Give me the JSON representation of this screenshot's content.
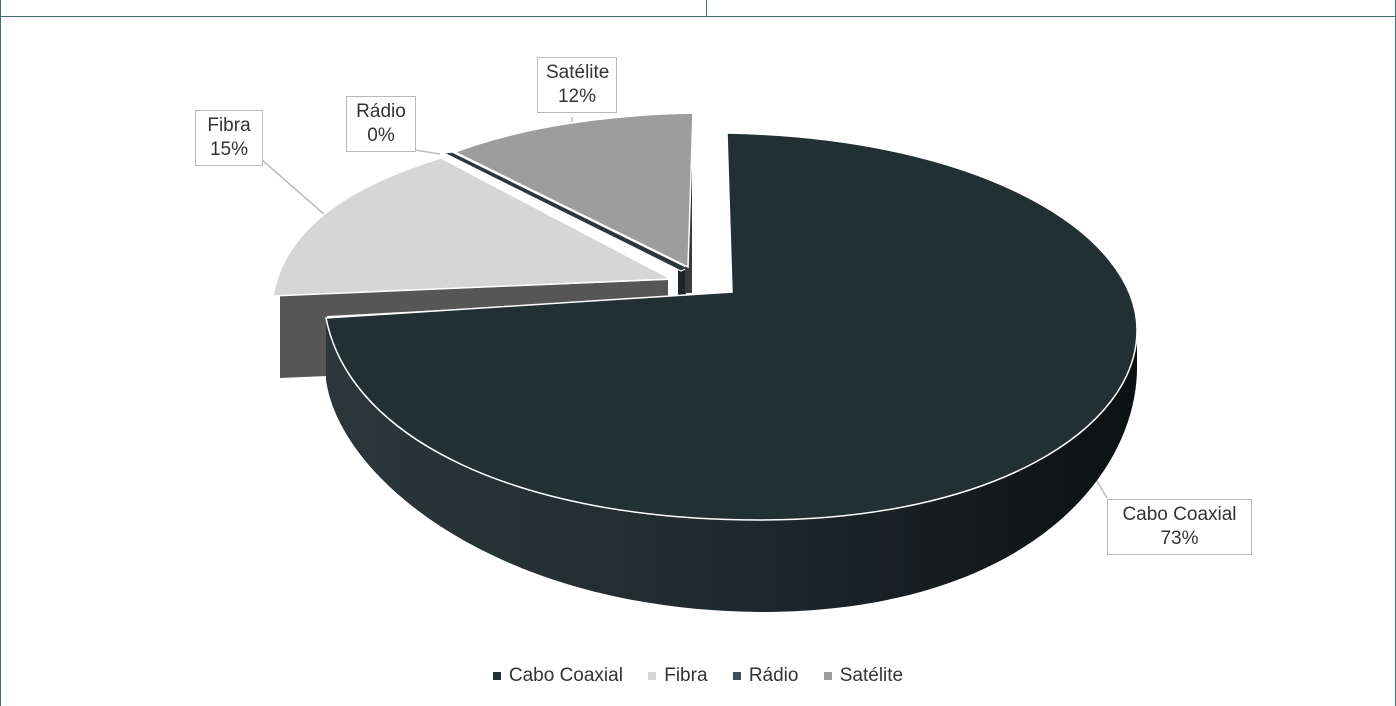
{
  "chart_data": {
    "type": "pie",
    "title": "",
    "slices": [
      {
        "name": "Cabo Coaxial",
        "value": 73,
        "label": "73%",
        "color": "#222f33"
      },
      {
        "name": "Fibra",
        "value": 15,
        "label": "15%",
        "color": "#d6d6d6"
      },
      {
        "name": "Rádio",
        "value": 0,
        "label": "0%",
        "color": "#3b4f55"
      },
      {
        "name": "Satélite",
        "value": 12,
        "label": "12%",
        "color": "#9d9d9d"
      }
    ],
    "legend_position": "bottom"
  }
}
